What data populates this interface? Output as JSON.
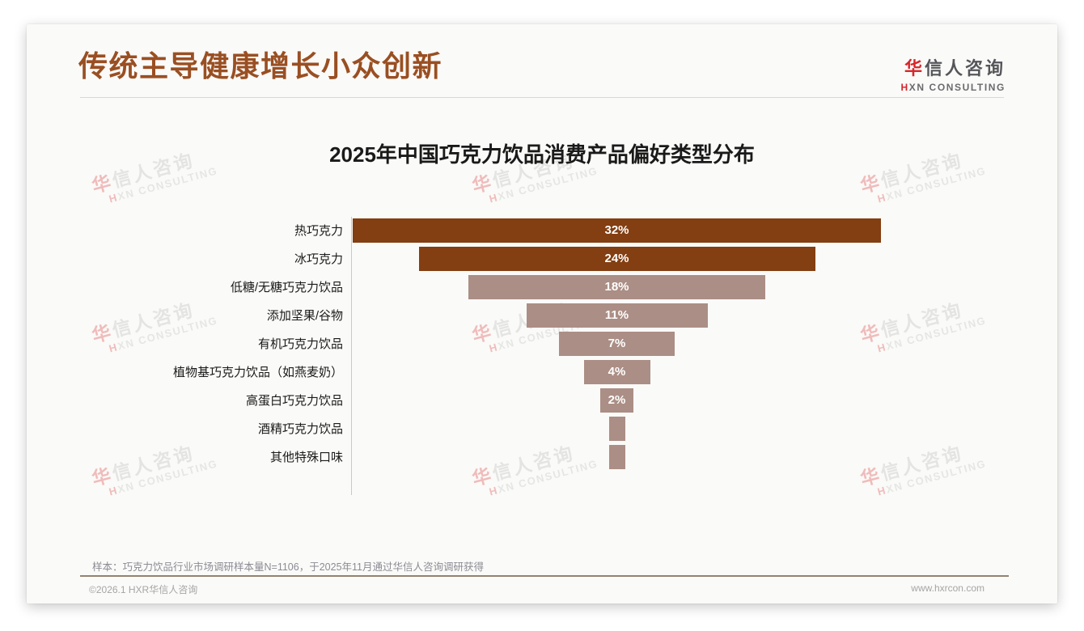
{
  "header": {
    "title": "传统主导健康增长小众创新"
  },
  "logo": {
    "cn_first": "华",
    "cn_rest": "信人咨询",
    "en_first": "H",
    "en_rest": "XN CONSULTING"
  },
  "watermark": {
    "cn_first": "华",
    "cn_rest": "信人咨询",
    "en_first": "H",
    "en_rest": "XN CONSULTING"
  },
  "chart_data": {
    "type": "bar",
    "variant": "horizontal-centered-funnel",
    "title": "2025年中国巧克力饮品消费产品偏好类型分布",
    "categories": [
      "热巧克力",
      "冰巧克力",
      "低糖/无糖巧克力饮品",
      "添加坚果/谷物",
      "有机巧克力饮品",
      "植物基巧克力饮品（如燕麦奶）",
      "高蛋白巧克力饮品",
      "酒精巧克力饮品",
      "其他特殊口味"
    ],
    "values": [
      32,
      24,
      18,
      11,
      7,
      4,
      2,
      1,
      1
    ],
    "value_labels": [
      "32%",
      "24%",
      "18%",
      "11%",
      "7%",
      "4%",
      "2%",
      "",
      ""
    ],
    "unit": "%",
    "xlim": [
      0,
      32
    ],
    "grid": false,
    "legend": false,
    "emphasis_count": 2,
    "colors": {
      "bar_dark": "#833E11",
      "bar_light": "#AB8E85",
      "value_label": "#FFFFFF"
    }
  },
  "colors": {
    "accent_title": "#9A4F22",
    "logo_red": "#D7262C",
    "card_background": "#FAFAF8",
    "footer_divider": "#93826F"
  },
  "footnote": "样本：巧克力饮品行业市场调研样本量N=1106，于2025年11月通过华信人咨询调研获得",
  "footer": {
    "copyright": "©2026.1 HXR华信人咨询",
    "website": "www.hxrcon.com"
  }
}
